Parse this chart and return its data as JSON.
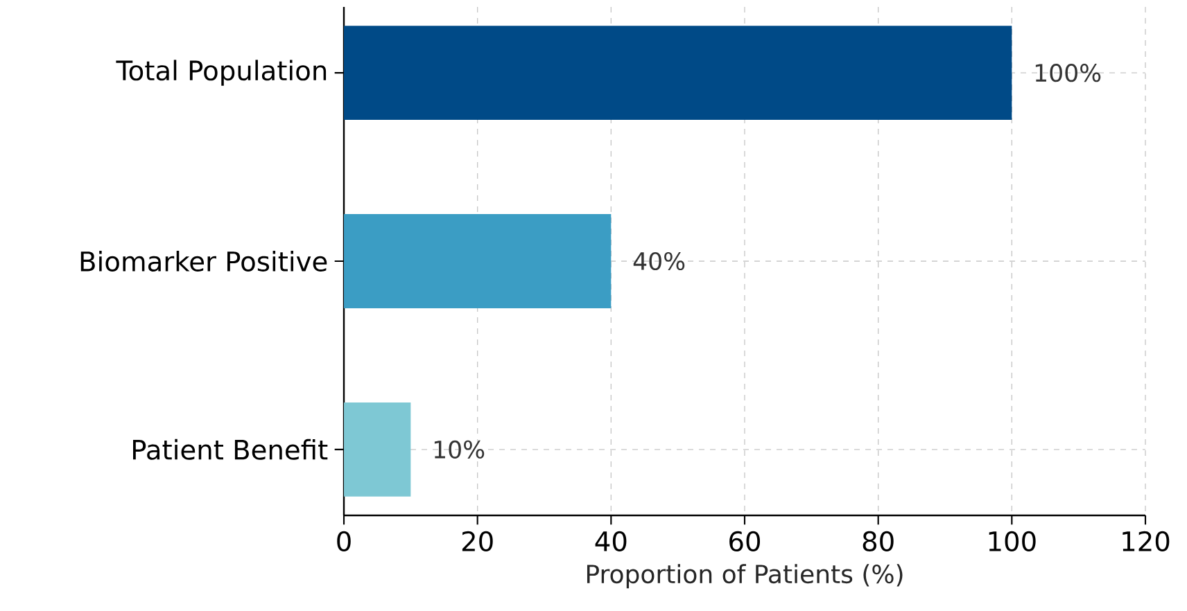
{
  "chart_data": {
    "type": "bar",
    "orientation": "horizontal",
    "xlabel": "Proportion of Patients (%)",
    "categories": [
      "Total Population",
      "Biomarker Positive",
      "Patient Benefit"
    ],
    "values": [
      100,
      40,
      10
    ],
    "colors": [
      "#004a87",
      "#3b9dc4",
      "#7ec8d4"
    ],
    "value_labels": [
      "100%",
      "40%",
      "10%"
    ],
    "xlim": [
      0,
      120
    ],
    "xticks": [
      0,
      20,
      40,
      60,
      80,
      100,
      120
    ],
    "grid": true
  }
}
